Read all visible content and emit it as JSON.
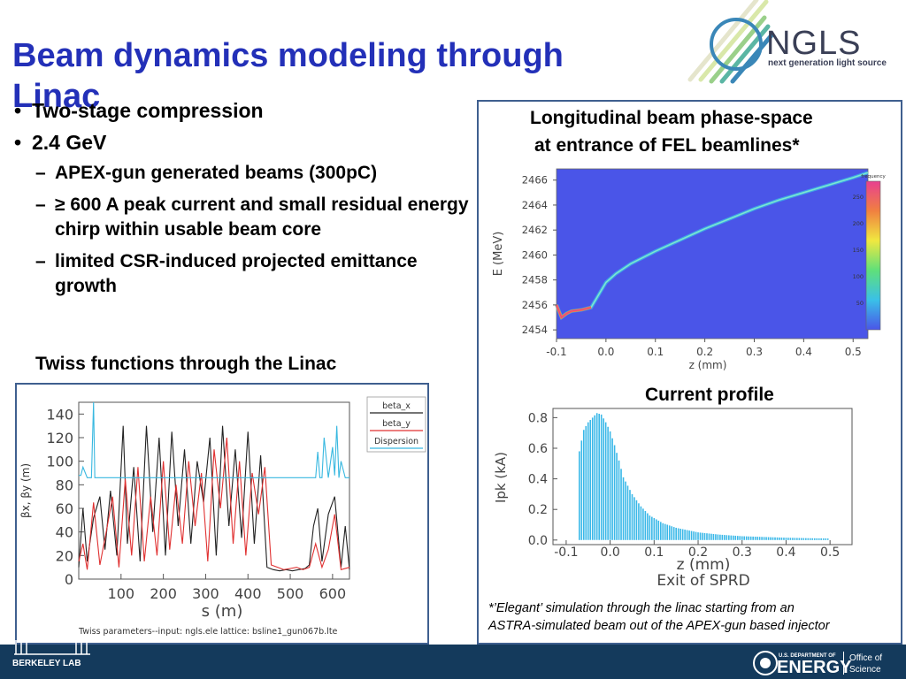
{
  "title": "Beam dynamics modeling through Linac",
  "logo": {
    "name": "NGLS",
    "tagline": "next generation light source"
  },
  "bullets": [
    {
      "level": 1,
      "text": "Two-stage compression"
    },
    {
      "level": 1,
      "text": "2.4 GeV"
    },
    {
      "level": 2,
      "text": "APEX-gun generated  beams (300pC)"
    },
    {
      "level": 2,
      "text": "≥ 600 A peak current and small residual energy chirp within usable beam core"
    },
    {
      "level": 2,
      "text": "limited CSR-induced projected emittance growth"
    }
  ],
  "twiss_heading": "Twiss functions through the Linac",
  "phase_heading_line1": "Longitudinal beam phase-space",
  "phase_heading_line2": "at entrance of FEL beamlines*",
  "current_heading": "Current profile",
  "footnote_line1": "*’Elegant’ simulation through the linac starting from  an",
  "footnote_line2": "ASTRA-simulated beam out of the APEX-gun based injector",
  "footer": {
    "left_label": "BERKELEY LAB",
    "doe_small": "U.S. DEPARTMENT OF",
    "doe_big": "ENERGY",
    "office1": "Office of",
    "office2": "Science"
  },
  "chart_data": [
    {
      "type": "line",
      "ylabel": "βx, βy (m)",
      "xlabel": "s  (m)",
      "caption": "Twiss parameters--input: ngls.ele    lattice: bsline1_gun067b.lte",
      "xticks": [
        "100",
        "200",
        "300",
        "400",
        "500",
        "600"
      ],
      "yticks": [
        "0",
        "20",
        "40",
        "60",
        "80",
        "100",
        "120",
        "140"
      ],
      "xlim": [
        0,
        640
      ],
      "ylim": [
        0,
        150
      ],
      "legend": [
        "beta_x",
        "beta_y",
        "Dispersion"
      ],
      "colors": {
        "beta_x": "#222222",
        "beta_y": "#e03030",
        "dispersion": "#38b8e0"
      },
      "series": [
        {
          "name": "beta_x",
          "x": [
            0,
            10,
            20,
            35,
            50,
            62,
            75,
            90,
            105,
            115,
            130,
            145,
            160,
            175,
            190,
            205,
            220,
            235,
            250,
            265,
            280,
            295,
            310,
            325,
            340,
            355,
            370,
            385,
            400,
            415,
            430,
            445,
            460,
            475,
            490,
            505,
            520,
            535,
            545,
            555,
            565,
            575,
            590,
            605,
            620,
            630,
            640
          ],
          "y": [
            10,
            60,
            15,
            52,
            70,
            25,
            75,
            20,
            130,
            30,
            95,
            15,
            130,
            40,
            120,
            20,
            125,
            45,
            110,
            30,
            100,
            65,
            120,
            20,
            130,
            45,
            110,
            35,
            125,
            30,
            105,
            10,
            8,
            7,
            8,
            7,
            8,
            9,
            12,
            45,
            60,
            15,
            55,
            70,
            10,
            45,
            8
          ]
        },
        {
          "name": "beta_y",
          "x": [
            0,
            10,
            20,
            35,
            50,
            65,
            80,
            95,
            110,
            125,
            140,
            155,
            170,
            185,
            200,
            215,
            230,
            245,
            260,
            275,
            290,
            305,
            320,
            335,
            350,
            365,
            380,
            395,
            410,
            425,
            440,
            455,
            470,
            485,
            500,
            515,
            530,
            545,
            560,
            575,
            590,
            605,
            620,
            640
          ],
          "y": [
            15,
            30,
            8,
            65,
            12,
            40,
            70,
            10,
            85,
            20,
            95,
            15,
            70,
            20,
            100,
            25,
            80,
            30,
            100,
            45,
            90,
            15,
            110,
            60,
            120,
            30,
            100,
            20,
            90,
            55,
            95,
            12,
            10,
            8,
            9,
            10,
            8,
            10,
            30,
            10,
            25,
            55,
            8,
            10
          ]
        },
        {
          "name": "Dispersion",
          "x": [
            0,
            5,
            10,
            20,
            30,
            35,
            38,
            42,
            50,
            120,
            200,
            300,
            400,
            500,
            560,
            565,
            570,
            575,
            580,
            590,
            600,
            605,
            610,
            615,
            620,
            630,
            640
          ],
          "y": [
            88,
            88,
            95,
            86,
            86,
            160,
            86,
            86,
            86,
            86,
            86,
            86,
            86,
            86,
            86,
            108,
            86,
            86,
            120,
            86,
            112,
            88,
            130,
            86,
            100,
            86,
            86
          ]
        }
      ]
    },
    {
      "type": "heatmap",
      "xlabel": "z (mm)",
      "ylabel": "E  (MeV)",
      "colorbar_label": "frequency",
      "colorbar_ticks": [
        "50",
        "100",
        "150",
        "200",
        "250"
      ],
      "xticks": [
        "-0.1",
        "0.0",
        "0.1",
        "0.2",
        "0.3",
        "0.4",
        "0.5"
      ],
      "yticks": [
        "2454",
        "2456",
        "2458",
        "2460",
        "2462",
        "2464",
        "2466"
      ],
      "xlim": [
        -0.1,
        0.53
      ],
      "ylim": [
        2453.3,
        2466.9
      ],
      "background": "#4a55e8",
      "ridge": {
        "z": [
          -0.1,
          -0.09,
          -0.08,
          -0.07,
          -0.05,
          -0.03,
          -0.015,
          0.0,
          0.02,
          0.05,
          0.1,
          0.15,
          0.2,
          0.25,
          0.3,
          0.35,
          0.4,
          0.45,
          0.5,
          0.53
        ],
        "E": [
          2456.0,
          2455.0,
          2455.3,
          2455.5,
          2455.6,
          2455.8,
          2456.8,
          2457.8,
          2458.5,
          2459.3,
          2460.3,
          2461.2,
          2462.1,
          2462.9,
          2463.7,
          2464.4,
          2465.0,
          2465.6,
          2466.2,
          2466.6
        ]
      }
    },
    {
      "type": "bar",
      "xlabel": "z  (mm)",
      "subtitle": "Exit  of  SPRD",
      "ylabel": "Ipk  (kA)",
      "xticks": [
        "-0.1",
        "0.0",
        "0.1",
        "0.2",
        "0.3",
        "0.4",
        "0.5"
      ],
      "yticks": [
        "0.0",
        "0.2",
        "0.4",
        "0.6",
        "0.8"
      ],
      "xlim": [
        -0.13,
        0.55
      ],
      "ylim": [
        -0.03,
        0.86
      ],
      "bar_color": "#3ab8e8",
      "peak_current": {
        "z": [
          -0.07,
          -0.06,
          -0.05,
          -0.04,
          -0.03,
          -0.02,
          -0.01,
          0.0,
          0.01,
          0.02,
          0.03,
          0.05,
          0.07,
          0.09,
          0.12,
          0.15,
          0.2,
          0.25,
          0.3,
          0.35,
          0.4,
          0.45,
          0.5
        ],
        "I": [
          0.58,
          0.72,
          0.77,
          0.8,
          0.83,
          0.82,
          0.77,
          0.71,
          0.62,
          0.52,
          0.41,
          0.3,
          0.22,
          0.16,
          0.11,
          0.08,
          0.05,
          0.035,
          0.025,
          0.02,
          0.015,
          0.012,
          0.01
        ]
      }
    }
  ]
}
